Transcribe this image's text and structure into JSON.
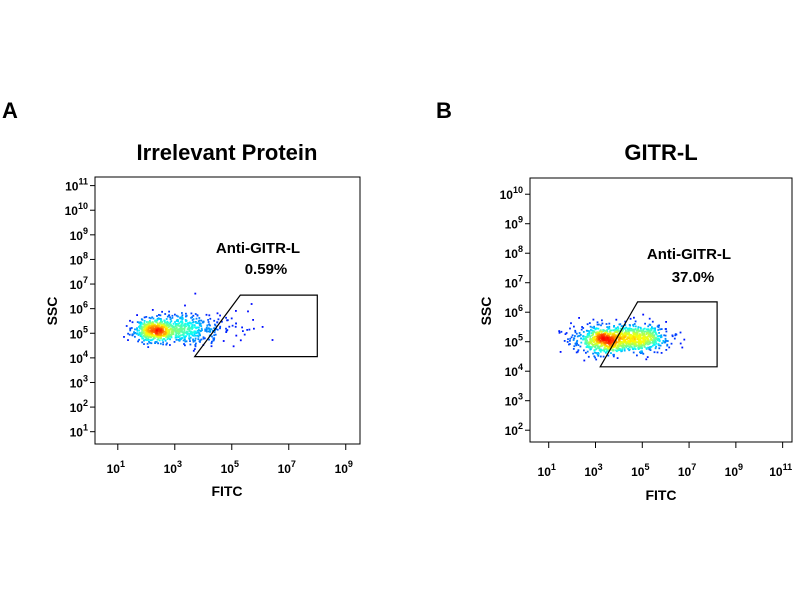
{
  "chart_data": [
    {
      "type": "scatter",
      "panel_label": "A",
      "title": "Irrelevant Protein",
      "xlabel": "FITC",
      "ylabel": "SSC",
      "x_scale": "log10",
      "y_scale": "log10",
      "xlim": [
        0.2,
        9.5
      ],
      "ylim": [
        0.5,
        11.35
      ],
      "x_ticks": [
        {
          "base": "10",
          "exp": "1",
          "v": 1
        },
        {
          "base": "10",
          "exp": "3",
          "v": 3
        },
        {
          "base": "10",
          "exp": "5",
          "v": 5
        },
        {
          "base": "10",
          "exp": "7",
          "v": 7
        },
        {
          "base": "10",
          "exp": "9",
          "v": 9
        }
      ],
      "y_ticks": [
        {
          "base": "10",
          "exp": "1",
          "v": 1
        },
        {
          "base": "10",
          "exp": "2",
          "v": 2
        },
        {
          "base": "10",
          "exp": "3",
          "v": 3
        },
        {
          "base": "10",
          "exp": "4",
          "v": 4
        },
        {
          "base": "10",
          "exp": "5",
          "v": 5
        },
        {
          "base": "10",
          "exp": "6",
          "v": 6
        },
        {
          "base": "10",
          "exp": "7",
          "v": 7
        },
        {
          "base": "10",
          "exp": "8",
          "v": 8
        },
        {
          "base": "10",
          "exp": "9",
          "v": 9
        },
        {
          "base": "10",
          "exp": "10",
          "v": 10
        },
        {
          "base": "10",
          "exp": "11",
          "v": 11
        }
      ],
      "gate": {
        "name": "Anti-GITR-L",
        "percent": "0.59%",
        "vertices": [
          [
            3.7,
            4.05
          ],
          [
            5.3,
            6.55
          ],
          [
            8.0,
            6.55
          ],
          [
            8.0,
            4.05
          ]
        ]
      },
      "populations": [
        {
          "cx": 2.3,
          "cy": 5.1,
          "sx": 0.35,
          "sy": 0.22,
          "n": 420
        },
        {
          "cx": 3.2,
          "cy": 5.2,
          "sx": 0.7,
          "sy": 0.3,
          "n": 520
        },
        {
          "cx": 5.0,
          "cy": 5.3,
          "sx": 0.8,
          "sy": 0.35,
          "n": 22
        }
      ],
      "seed": 11
    },
    {
      "type": "scatter",
      "panel_label": "B",
      "title": "GITR-L",
      "xlabel": "FITC",
      "ylabel": "SSC",
      "x_scale": "log10",
      "y_scale": "log10",
      "xlim": [
        0.2,
        11.4
      ],
      "ylim": [
        1.6,
        10.55
      ],
      "x_ticks": [
        {
          "base": "10",
          "exp": "1",
          "v": 1
        },
        {
          "base": "10",
          "exp": "3",
          "v": 3
        },
        {
          "base": "10",
          "exp": "5",
          "v": 5
        },
        {
          "base": "10",
          "exp": "7",
          "v": 7
        },
        {
          "base": "10",
          "exp": "9",
          "v": 9
        },
        {
          "base": "10",
          "exp": "11",
          "v": 11
        }
      ],
      "y_ticks": [
        {
          "base": "10",
          "exp": "2",
          "v": 2
        },
        {
          "base": "10",
          "exp": "3",
          "v": 3
        },
        {
          "base": "10",
          "exp": "4",
          "v": 4
        },
        {
          "base": "10",
          "exp": "5",
          "v": 5
        },
        {
          "base": "10",
          "exp": "6",
          "v": 6
        },
        {
          "base": "10",
          "exp": "7",
          "v": 7
        },
        {
          "base": "10",
          "exp": "8",
          "v": 8
        },
        {
          "base": "10",
          "exp": "9",
          "v": 9
        },
        {
          "base": "10",
          "exp": "10",
          "v": 10
        }
      ],
      "gate": {
        "name": "Anti-GITR-L",
        "percent": "37.0%",
        "vertices": [
          [
            3.2,
            4.15
          ],
          [
            4.8,
            6.35
          ],
          [
            8.2,
            6.35
          ],
          [
            8.2,
            4.15
          ]
        ]
      },
      "populations": [
        {
          "cx": 3.3,
          "cy": 5.05,
          "sx": 0.55,
          "sy": 0.22,
          "n": 520
        },
        {
          "cx": 4.9,
          "cy": 5.1,
          "sx": 0.6,
          "sy": 0.22,
          "n": 420
        },
        {
          "cx": 4.0,
          "cy": 5.1,
          "sx": 1.0,
          "sy": 0.3,
          "n": 260
        }
      ],
      "seed": 23
    }
  ],
  "colors": {
    "density_low": "#0000ff",
    "density_mid": "#00ffff",
    "density_high": "#ffff00",
    "density_peak": "#ff0000",
    "axis": "#000000"
  }
}
